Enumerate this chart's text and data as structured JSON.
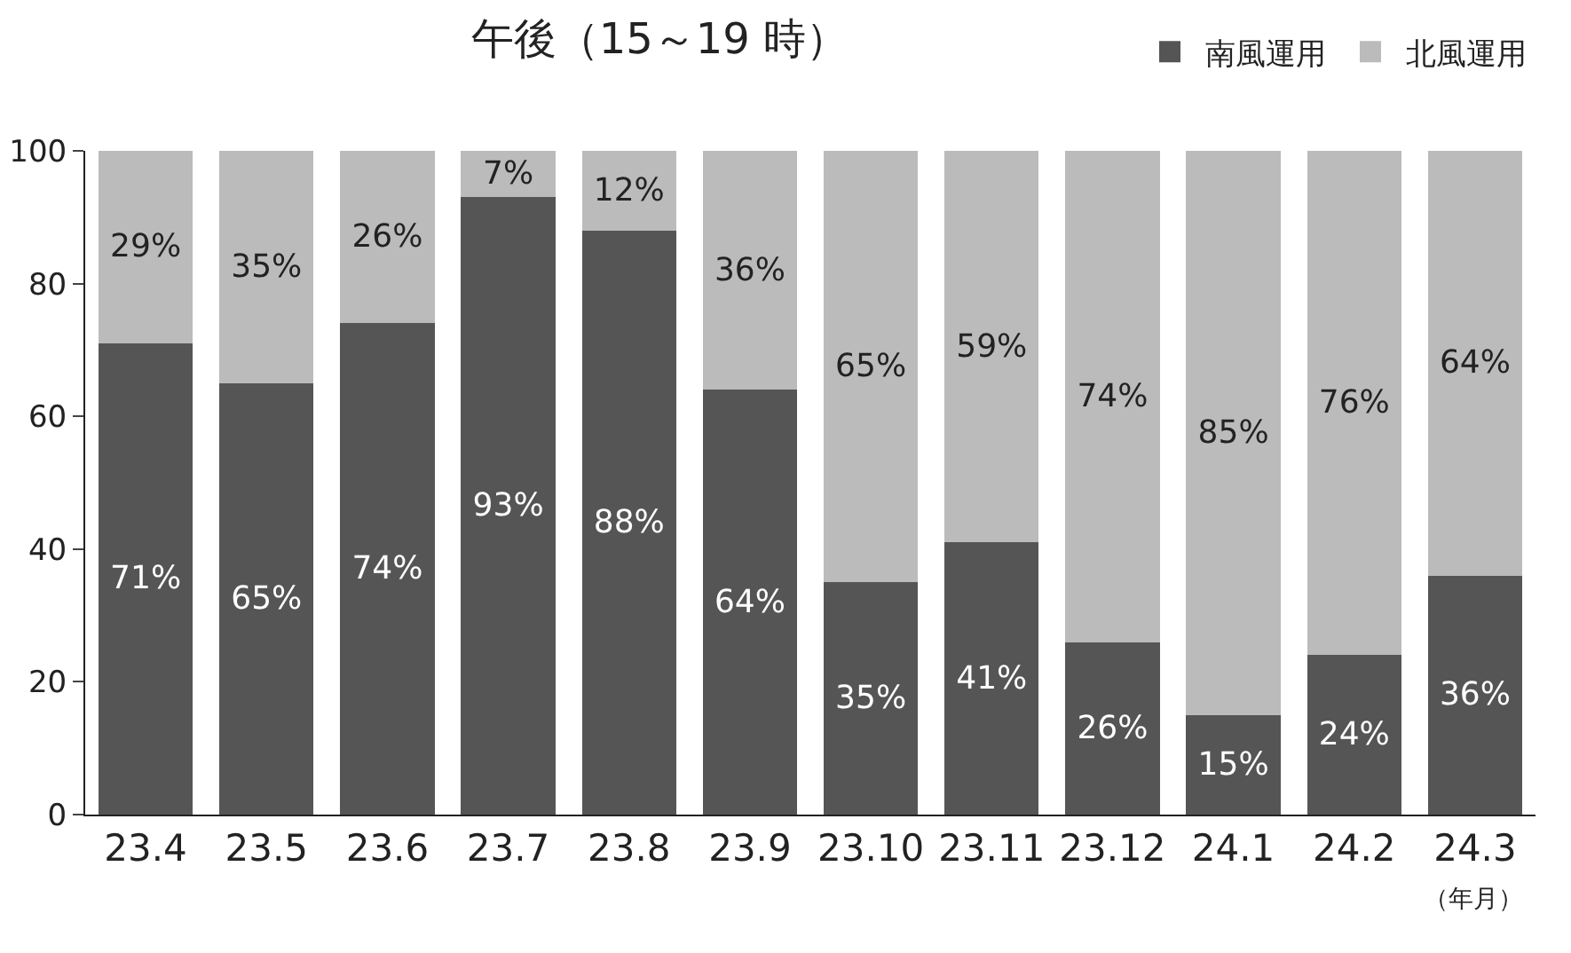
{
  "chart_data": {
    "type": "bar",
    "title": "午後（15～19 時）",
    "xlabel": "（年月）",
    "categories": [
      "23.4",
      "23.5",
      "23.6",
      "23.7",
      "23.8",
      "23.9",
      "23.10",
      "23.11",
      "23.12",
      "24.1",
      "24.2",
      "24.3"
    ],
    "series": [
      {
        "name": "南風運用",
        "color": "#555555",
        "values": [
          71,
          65,
          74,
          93,
          88,
          64,
          35,
          41,
          26,
          15,
          24,
          36
        ],
        "value_labels": [
          "71%",
          "65%",
          "74%",
          "93%",
          "88%",
          "64%",
          "35%",
          "41%",
          "26%",
          "15%",
          "24%",
          "36%"
        ]
      },
      {
        "name": "北風運用",
        "color": "#bbbbbb",
        "values": [
          29,
          35,
          26,
          7,
          12,
          36,
          65,
          59,
          74,
          85,
          76,
          64
        ],
        "value_labels": [
          "29%",
          "35%",
          "26%",
          "7%",
          "12%",
          "36%",
          "65%",
          "59%",
          "74%",
          "85%",
          "76%",
          "64%"
        ]
      }
    ],
    "stacked": true,
    "ylim": [
      0,
      100
    ],
    "yticks": [
      0,
      20,
      40,
      60,
      80,
      100
    ],
    "grid": false,
    "legend": "top right"
  }
}
